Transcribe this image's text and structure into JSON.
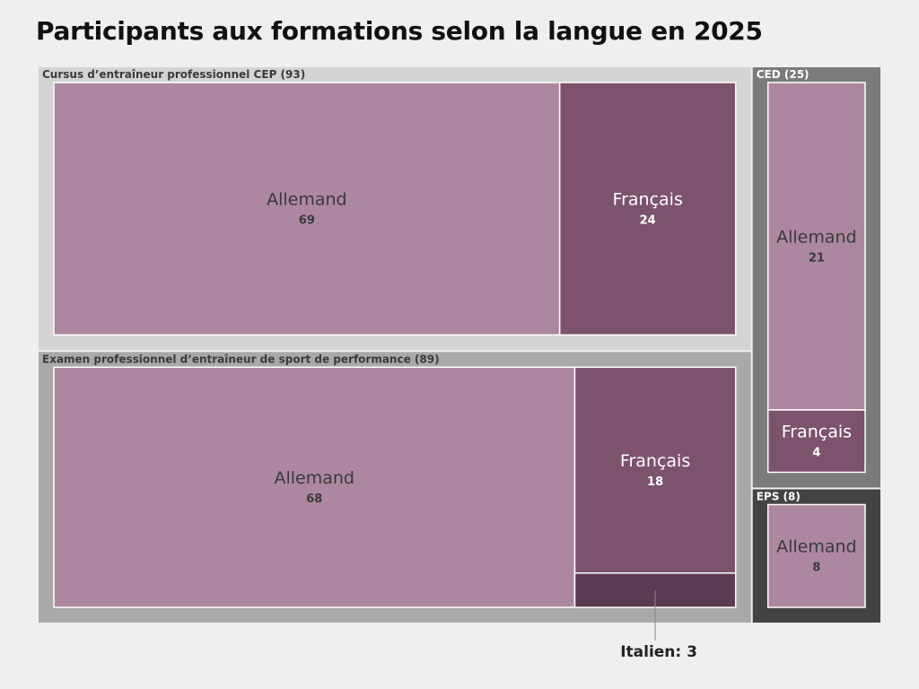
{
  "chart_data": {
    "type": "treemap",
    "title": "Participants aux formations selon la langue en 2025",
    "groups": [
      {
        "label": "Cursus d’entraîneur professionnel CEP (93)",
        "total": 93,
        "items": [
          {
            "language": "Allemand",
            "value": 69
          },
          {
            "language": "Français",
            "value": 24
          }
        ]
      },
      {
        "label": "Examen professionnel d’entraîneur de sport de performance (89)",
        "total": 89,
        "items": [
          {
            "language": "Allemand",
            "value": 68
          },
          {
            "language": "Français",
            "value": 18
          },
          {
            "language": "Italien",
            "value": 3
          }
        ]
      },
      {
        "label": "CED (25)",
        "total": 25,
        "items": [
          {
            "language": "Allemand",
            "value": 21
          },
          {
            "language": "Français",
            "value": 4
          }
        ]
      },
      {
        "label": "EPS (8)",
        "total": 8,
        "items": [
          {
            "language": "Allemand",
            "value": 8
          }
        ]
      }
    ],
    "annotations": [
      {
        "text": "Italien: 3"
      }
    ]
  },
  "colors": {
    "background": "#efefef",
    "allemand": "#ad879f",
    "francais": "#7c526c",
    "italien": "#5c3a51",
    "group_cep": "#d4d4d4",
    "group_examen": "#a9a9a9",
    "group_ced": "#7b7b7a",
    "group_eps": "#434342",
    "label_dark": "#3a3a3a",
    "label_light": "#ffffff"
  }
}
